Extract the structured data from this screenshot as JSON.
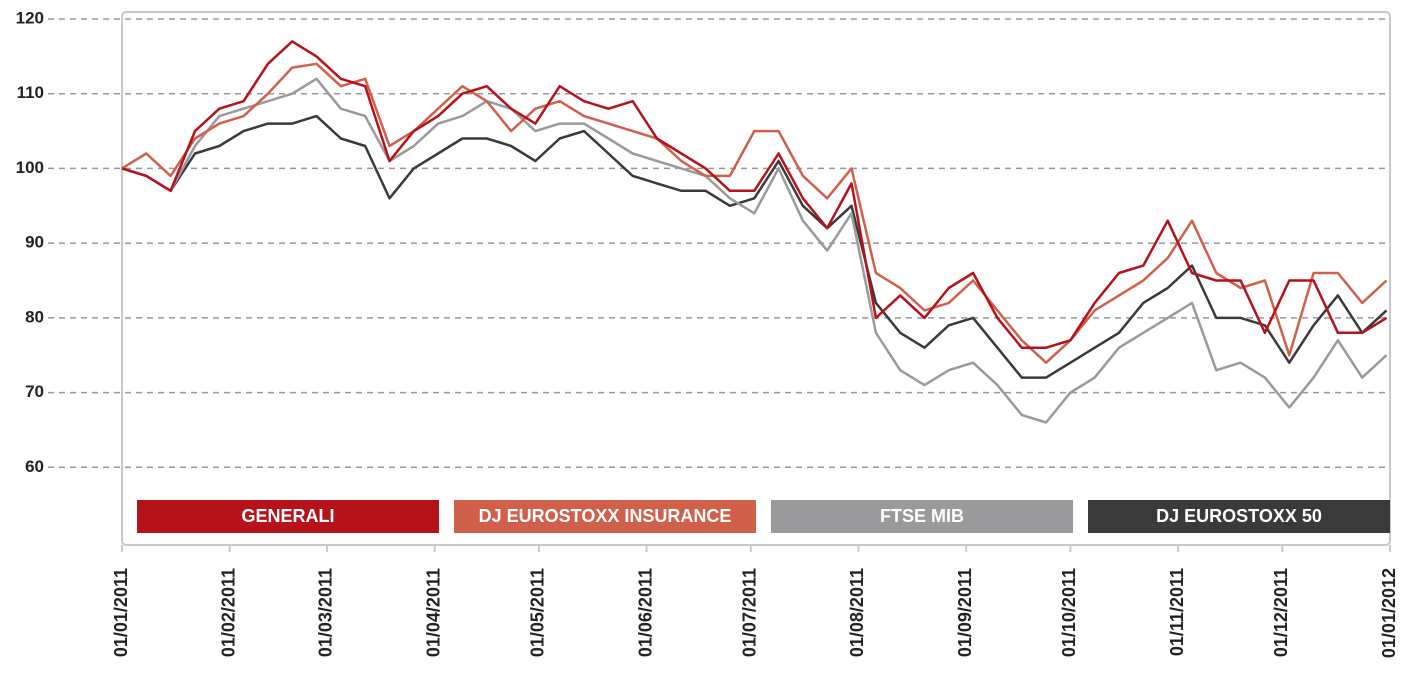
{
  "chart_data": {
    "type": "line",
    "x": [
      "2011-01-01",
      "2011-01-08",
      "2011-01-15",
      "2011-01-22",
      "2011-01-29",
      "2011-02-05",
      "2011-02-12",
      "2011-02-19",
      "2011-02-26",
      "2011-03-05",
      "2011-03-12",
      "2011-03-19",
      "2011-03-26",
      "2011-04-02",
      "2011-04-09",
      "2011-04-16",
      "2011-04-23",
      "2011-04-30",
      "2011-05-07",
      "2011-05-14",
      "2011-05-21",
      "2011-05-28",
      "2011-06-04",
      "2011-06-11",
      "2011-06-18",
      "2011-06-25",
      "2011-07-02",
      "2011-07-09",
      "2011-07-16",
      "2011-07-23",
      "2011-07-30",
      "2011-08-06",
      "2011-08-13",
      "2011-08-20",
      "2011-08-27",
      "2011-09-03",
      "2011-09-10",
      "2011-09-17",
      "2011-09-24",
      "2011-10-01",
      "2011-10-08",
      "2011-10-15",
      "2011-10-22",
      "2011-10-29",
      "2011-11-05",
      "2011-11-12",
      "2011-11-19",
      "2011-11-26",
      "2011-12-03",
      "2011-12-10",
      "2011-12-17",
      "2011-12-24",
      "2011-12-31"
    ],
    "series": [
      {
        "name": "GENERALI",
        "color": "#b5121b",
        "values": [
          100,
          99,
          97,
          105,
          108,
          109,
          114,
          117,
          115,
          112,
          111,
          101,
          105,
          107,
          110,
          111,
          108,
          106,
          111,
          109,
          108,
          109,
          104,
          102,
          100,
          97,
          97,
          102,
          96,
          92,
          98,
          80,
          83,
          80,
          84,
          86,
          80,
          76,
          76,
          77,
          82,
          86,
          87,
          93,
          86,
          85,
          85,
          78,
          85,
          85,
          78,
          78,
          80
        ]
      },
      {
        "name": "DJ EUROSTOXX INSURANCE",
        "color": "#d0604a",
        "values": [
          100,
          102,
          99,
          104,
          106,
          107,
          110,
          113.5,
          114,
          111,
          112,
          103,
          105,
          108,
          111,
          109,
          105,
          108,
          109,
          107,
          106,
          105,
          104,
          101,
          99,
          99,
          105,
          105,
          99,
          96,
          100,
          86,
          84,
          81,
          82,
          85,
          81,
          77,
          74,
          77,
          81,
          83,
          85,
          88,
          93,
          86,
          84,
          85,
          75,
          86,
          86,
          82,
          85
        ]
      },
      {
        "name": "FTSE MIB",
        "color": "#9a9a9c",
        "values": [
          100,
          99,
          97,
          103,
          107,
          108,
          109,
          110,
          112,
          108,
          107,
          101,
          103,
          106,
          107,
          109,
          108,
          105,
          106,
          106,
          104,
          102,
          101,
          100,
          99,
          96,
          94,
          100,
          93,
          89,
          94,
          78,
          73,
          71,
          73,
          74,
          71,
          67,
          66,
          70,
          72,
          76,
          78,
          80,
          82,
          73,
          74,
          72,
          68,
          72,
          77,
          72,
          75
        ]
      },
      {
        "name": "DJ EUROSTOXX 50",
        "color": "#3a3a3a",
        "values": [
          100,
          99,
          97,
          102,
          103,
          105,
          106,
          106,
          107,
          104,
          103,
          96,
          100,
          102,
          104,
          104,
          103,
          101,
          104,
          105,
          102,
          99,
          98,
          97,
          97,
          95,
          96,
          101,
          95,
          92,
          95,
          82,
          78,
          76,
          79,
          80,
          76,
          72,
          72,
          74,
          76,
          78,
          82,
          84,
          87,
          80,
          80,
          79,
          74,
          79,
          83,
          78,
          81
        ]
      }
    ],
    "xlim": [
      "2011-01-01",
      "2012-01-01"
    ],
    "xticks": [
      {
        "value": "2011-01-01",
        "label": "01/01/2011"
      },
      {
        "value": "2011-02-01",
        "label": "01/02/2011"
      },
      {
        "value": "2011-03-01",
        "label": "01/03/2011"
      },
      {
        "value": "2011-04-01",
        "label": "01/04/2011"
      },
      {
        "value": "2011-05-01",
        "label": "01/05/2011"
      },
      {
        "value": "2011-06-01",
        "label": "01/06/2011"
      },
      {
        "value": "2011-07-01",
        "label": "01/07/2011"
      },
      {
        "value": "2011-08-01",
        "label": "01/08/2011"
      },
      {
        "value": "2011-09-01",
        "label": "01/09/2011"
      },
      {
        "value": "2011-10-01",
        "label": "01/10/2011"
      },
      {
        "value": "2011-11-01",
        "label": "01/11/2011"
      },
      {
        "value": "2011-12-01",
        "label": "01/12/2011"
      },
      {
        "value": "2012-01-01",
        "label": "01/01/2012"
      }
    ],
    "ylim": [
      50,
      120
    ],
    "yticks": [
      60,
      70,
      80,
      90,
      100,
      110,
      120
    ],
    "grid": true
  }
}
